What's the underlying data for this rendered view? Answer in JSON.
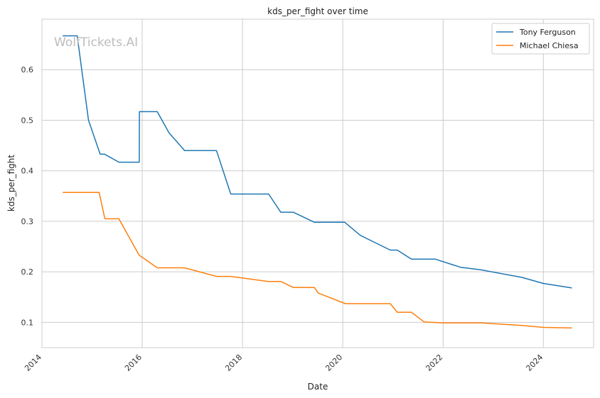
{
  "watermark": "WolfTickets.AI",
  "chart_data": {
    "type": "line",
    "title": "kds_per_fight over time",
    "xlabel": "Date",
    "ylabel": "kds_per_fight",
    "xlim": [
      "2014-01-01",
      "2025-01-01"
    ],
    "ylim": [
      0.05,
      0.7
    ],
    "xticks": [
      "2014",
      "2016",
      "2018",
      "2020",
      "2022",
      "2024"
    ],
    "yticks": [
      "0.1",
      "0.2",
      "0.3",
      "0.4",
      "0.5",
      "0.6"
    ],
    "grid": true,
    "legend_position": "top-right",
    "series": [
      {
        "name": "Tony Ferguson",
        "color": "#1f77b4",
        "points": [
          [
            "2014-06-01",
            0.667
          ],
          [
            "2014-09-15",
            0.667
          ],
          [
            "2014-12-06",
            0.5
          ],
          [
            "2015-03-01",
            0.433
          ],
          [
            "2015-04-01",
            0.433
          ],
          [
            "2015-07-15",
            0.417
          ],
          [
            "2015-12-11",
            0.417
          ],
          [
            "2015-12-12",
            0.517
          ],
          [
            "2016-04-20",
            0.517
          ],
          [
            "2016-07-15",
            0.475
          ],
          [
            "2016-11-05",
            0.44
          ],
          [
            "2017-06-25",
            0.44
          ],
          [
            "2017-10-07",
            0.354
          ],
          [
            "2018-07-10",
            0.354
          ],
          [
            "2018-10-06",
            0.318
          ],
          [
            "2019-01-05",
            0.318
          ],
          [
            "2019-06-08",
            0.298
          ],
          [
            "2020-01-15",
            0.298
          ],
          [
            "2020-05-09",
            0.272
          ],
          [
            "2020-12-12",
            0.243
          ],
          [
            "2021-02-01",
            0.243
          ],
          [
            "2021-05-15",
            0.225
          ],
          [
            "2021-11-06",
            0.225
          ],
          [
            "2022-05-07",
            0.209
          ],
          [
            "2022-10-01",
            0.204
          ],
          [
            "2023-07-29",
            0.189
          ],
          [
            "2023-12-31",
            0.177
          ],
          [
            "2024-07-27",
            0.168
          ]
        ]
      },
      {
        "name": "Michael Chiesa",
        "color": "#ff7f0e",
        "points": [
          [
            "2014-06-01",
            0.357
          ],
          [
            "2015-02-22",
            0.357
          ],
          [
            "2015-04-04",
            0.305
          ],
          [
            "2015-07-15",
            0.305
          ],
          [
            "2015-12-10",
            0.233
          ],
          [
            "2016-04-20",
            0.208
          ],
          [
            "2016-11-05",
            0.208
          ],
          [
            "2017-06-25",
            0.191
          ],
          [
            "2017-10-07",
            0.191
          ],
          [
            "2018-07-06",
            0.181
          ],
          [
            "2018-10-06",
            0.181
          ],
          [
            "2019-01-05",
            0.169
          ],
          [
            "2019-06-08",
            0.169
          ],
          [
            "2019-07-06",
            0.158
          ],
          [
            "2020-01-20",
            0.137
          ],
          [
            "2020-12-12",
            0.137
          ],
          [
            "2021-02-01",
            0.12
          ],
          [
            "2021-05-15",
            0.12
          ],
          [
            "2021-08-15",
            0.101
          ],
          [
            "2021-12-31",
            0.099
          ],
          [
            "2022-10-01",
            0.099
          ],
          [
            "2023-07-29",
            0.094
          ],
          [
            "2023-12-31",
            0.09
          ],
          [
            "2024-07-27",
            0.089
          ]
        ]
      }
    ]
  }
}
